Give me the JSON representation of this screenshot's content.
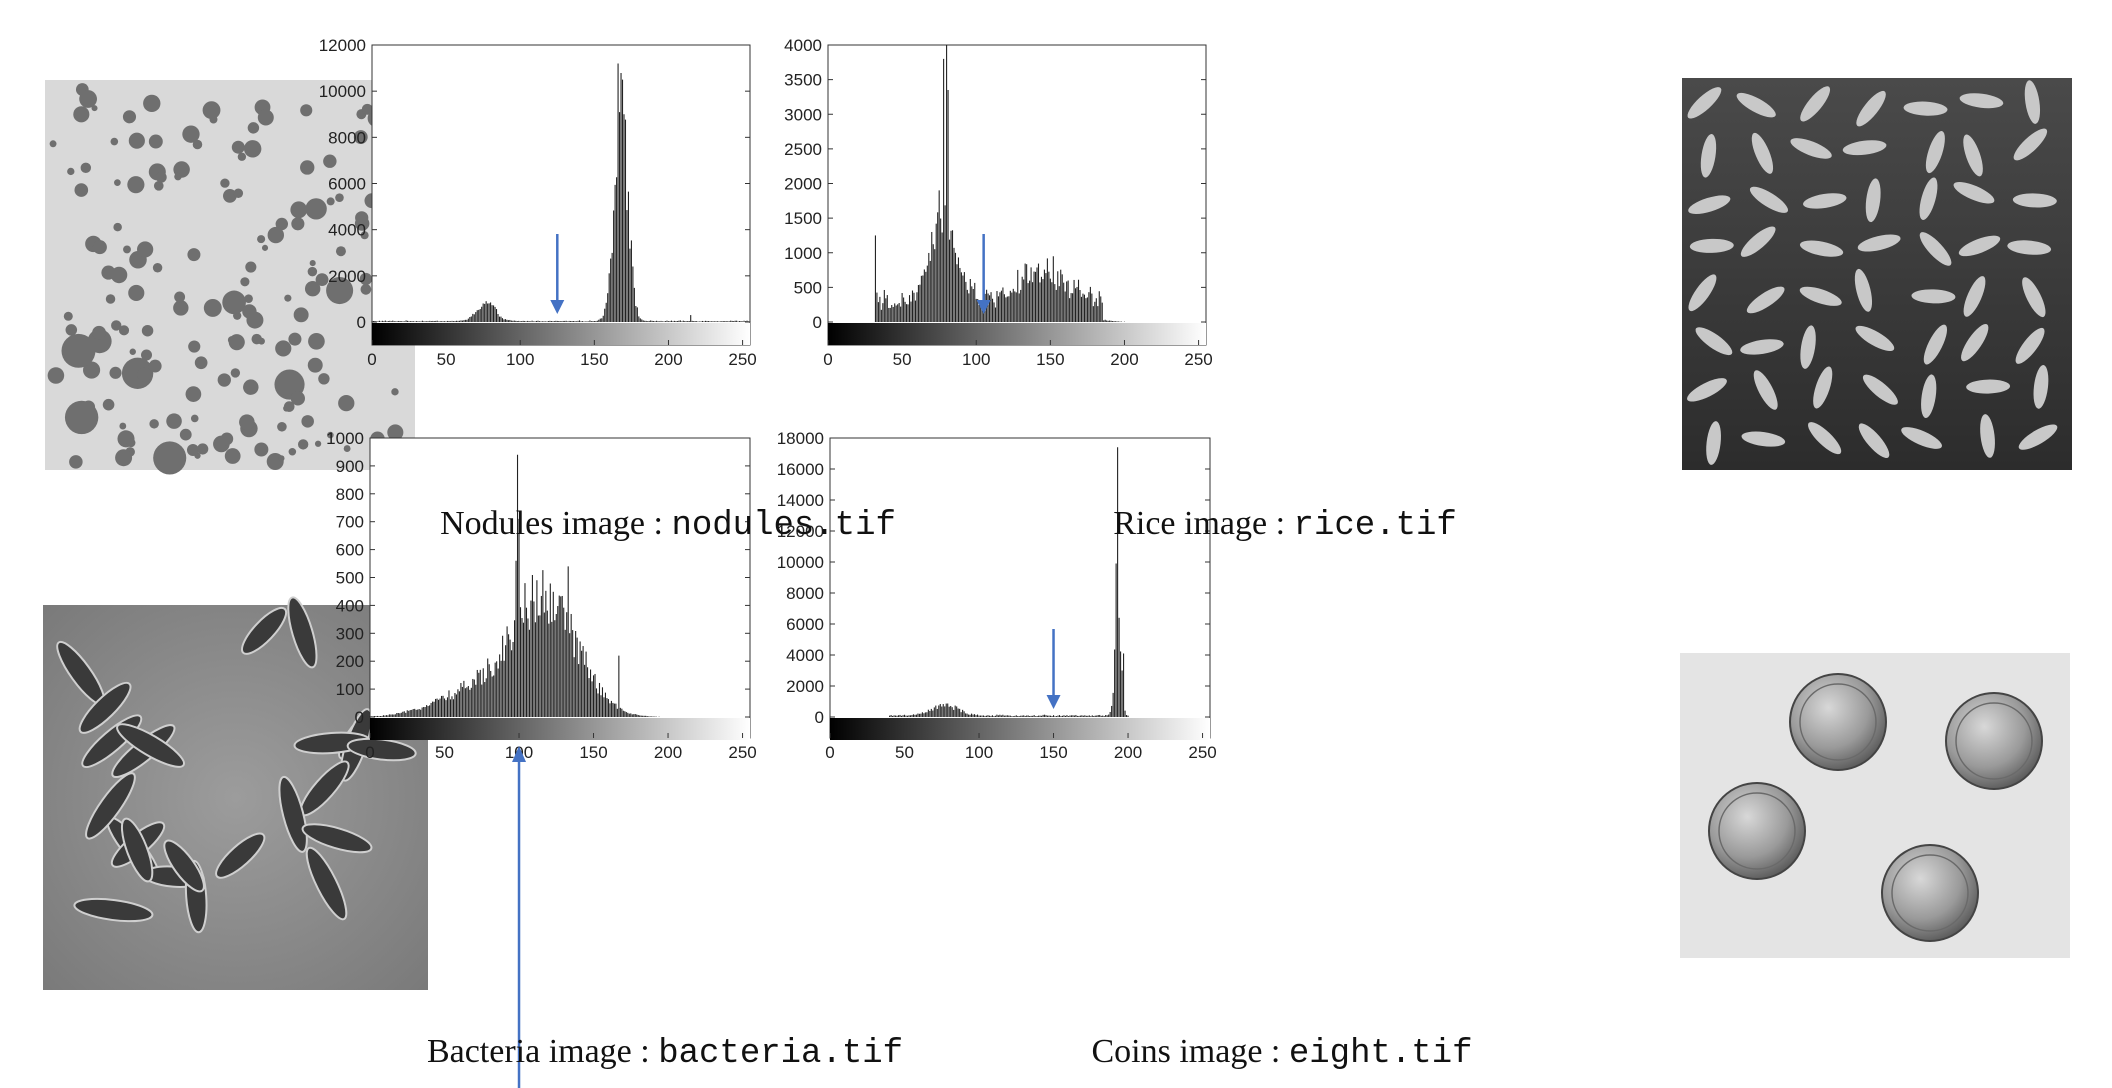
{
  "colors": {
    "arrow": "#4472c4",
    "bars": "#222222",
    "nodules_bg": "#d9d9d9",
    "nodules_blob": "#6f6f6f",
    "rice_bg": "#3e3e3e",
    "rice_grain": "#c8c8c8",
    "bacteria_bg": "#8c8c8c",
    "bacteria_cell": "#3a3a3a",
    "coins_bg": "#e4e4e4",
    "coin": "#9a9a9a"
  },
  "chart_data": [
    {
      "type": "bar",
      "caption": {
        "text": "Nodules image : ",
        "file": "nodules.tif"
      },
      "xlim": [
        0,
        255
      ],
      "ylim": [
        0,
        12000
      ],
      "xticks": [
        "0",
        "50",
        "100",
        "150",
        "200",
        "250"
      ],
      "yticks": [
        "0",
        "2000",
        "4000",
        "6000",
        "8000",
        "10000",
        "12000"
      ],
      "arrow_at": 125,
      "peaks": [
        {
          "center": 77,
          "width": 6,
          "height": 800
        },
        {
          "center": 168,
          "width": 4.5,
          "height": 9500
        }
      ],
      "base": 40,
      "spikes": [
        [
          166,
          11200
        ],
        [
          169,
          10500
        ],
        [
          170,
          9000
        ],
        [
          215,
          300
        ]
      ]
    },
    {
      "type": "bar",
      "caption": {
        "text": "Rice image : ",
        "file": "rice.tif"
      },
      "xlim": [
        0,
        255
      ],
      "ylim": [
        0,
        4000
      ],
      "xticks": [
        "0",
        "50",
        "100",
        "150",
        "200",
        "250"
      ],
      "yticks": [
        "0",
        "500",
        "1000",
        "1500",
        "2000",
        "2500",
        "3000",
        "3500",
        "4000"
      ],
      "arrow_at": 105,
      "peaks": [
        {
          "center": 78,
          "width": 9,
          "height": 1200
        },
        {
          "center": 145,
          "width": 18,
          "height": 420
        }
      ],
      "base": 280,
      "range": [
        32,
        185
      ],
      "spikes": [
        [
          32,
          1250
        ],
        [
          75,
          1900
        ],
        [
          78,
          3800
        ],
        [
          80,
          4000
        ],
        [
          81,
          3350
        ],
        [
          70,
          1300
        ]
      ]
    },
    {
      "type": "bar",
      "caption": {
        "text": "Bacteria image : ",
        "file": "bacteria.tif"
      },
      "xlim": [
        0,
        255
      ],
      "ylim": [
        0,
        1000
      ],
      "xticks": [
        "0",
        "50",
        "100",
        "150",
        "200",
        "250"
      ],
      "yticks": [
        "0",
        "100",
        "200",
        "300",
        "400",
        "500",
        "600",
        "700",
        "800",
        "900",
        "1000"
      ],
      "arrow_at": 100,
      "peaks": [
        {
          "center": 68,
          "width": 25,
          "height": 85
        },
        {
          "center": 117,
          "width": 22,
          "height": 420
        }
      ],
      "base": 0,
      "range": [
        0,
        180
      ],
      "spikes": [
        [
          99,
          940
        ],
        [
          100,
          710
        ],
        [
          98,
          560
        ],
        [
          112,
          490
        ],
        [
          133,
          540
        ],
        [
          167,
          220
        ],
        [
          104,
          480
        ]
      ]
    },
    {
      "type": "bar",
      "caption": {
        "text": "Coins image : ",
        "file": "eight.tif"
      },
      "xlim": [
        0,
        255
      ],
      "ylim": [
        0,
        18000
      ],
      "xticks": [
        "0",
        "50",
        "100",
        "150",
        "200",
        "250"
      ],
      "yticks": [
        "0",
        "2000",
        "4000",
        "6000",
        "8000",
        "10000",
        "12000",
        "14000",
        "16000",
        "18000"
      ],
      "arrow_at": 150,
      "peaks": [
        {
          "center": 77,
          "width": 9,
          "height": 650
        },
        {
          "center": 193,
          "width": 2,
          "height": 6000
        }
      ],
      "base": 90,
      "range": [
        40,
        200
      ],
      "spikes": [
        [
          192,
          9900
        ],
        [
          193,
          17400
        ],
        [
          194,
          6400
        ],
        [
          197,
          4100
        ],
        [
          196,
          3000
        ]
      ]
    }
  ]
}
